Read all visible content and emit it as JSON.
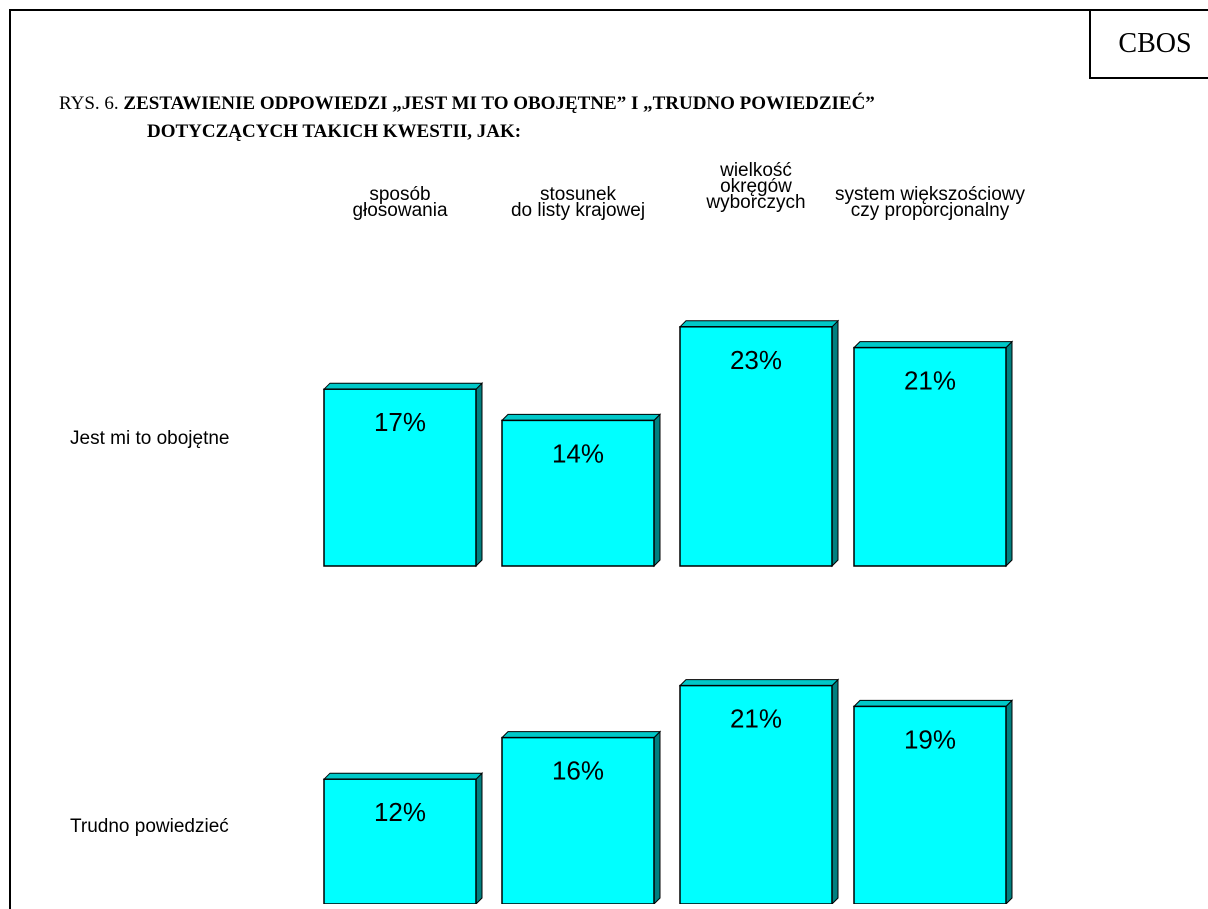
{
  "badge": "CBOS",
  "title": {
    "prefix": "RYS. 6.",
    "line1": "ZESTAWIENIE ODPOWIEDZI „JEST MI TO OBOJĘTNE” I „TRUDNO POWIEDZIEĆ”",
    "line2": "DOTYCZĄCYCH TAKICH KWESTII, JAK:"
  },
  "chart_data": {
    "type": "bar",
    "categories": [
      [
        "sposób",
        "głosowania"
      ],
      [
        "stosunek",
        "do listy krajowej"
      ],
      [
        "wielkość",
        "okręgów",
        "wyborczych"
      ],
      [
        "system większościowy",
        "czy proporcjonalny"
      ]
    ],
    "series": [
      {
        "name": "Jest mi to obojętne",
        "values": [
          17,
          14,
          23,
          21
        ]
      },
      {
        "name": "Trudno powiedzieć",
        "values": [
          12,
          16,
          21,
          19
        ]
      }
    ],
    "value_suffix": "%",
    "colors": {
      "front": "#00FFFF",
      "side": "#008080",
      "top": "#00C8C8",
      "stroke": "#000000"
    }
  }
}
